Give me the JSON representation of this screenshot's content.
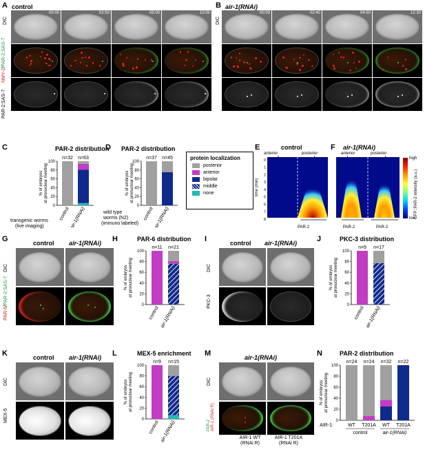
{
  "panels": {
    "A": {
      "letter": "A",
      "title": "control",
      "times": [
        "00:00",
        "02:50",
        "05:00",
        "10:00"
      ]
    },
    "B": {
      "letter": "B",
      "title": "air-1(RNAi)",
      "times": [
        "00:00",
        "02:40",
        "04:50",
        "12:30"
      ]
    },
    "row_labels": {
      "dic": "DIC",
      "nmy2": "NMY-2",
      "par2sas7": "PAR-2;SAS-7",
      "par2sas7_gray": "PAR-2;SAS-7"
    },
    "C": {
      "letter": "C",
      "title": "PAR-2 distribution",
      "note1": "transgenic worms",
      "note2": "(live imaging)"
    },
    "D": {
      "letter": "D",
      "title": "PAR-2 distribution",
      "note1": "wild type",
      "note2": "worms (N2)",
      "note3": "(immuno labeled)"
    },
    "legend": {
      "title": "protein localization",
      "items": [
        "posterior",
        "anterior",
        "bipolar",
        "middle",
        "none"
      ],
      "colors": {
        "posterior": "#a0a0a0",
        "anterior": "#c23cc4",
        "bipolar": "#102a8c",
        "middle": "#1a9c9c",
        "none": "#1fb9b9"
      }
    },
    "E": {
      "letter": "E",
      "title": "control",
      "anterior": "anterior",
      "posterior": "posterior",
      "ylabel": "time (min)",
      "xlabel": "PAR-2",
      "yticks": [
        "0",
        "1",
        "2",
        "3",
        "4",
        "5",
        "6",
        "7",
        "8"
      ]
    },
    "F": {
      "letter": "F",
      "title": "air-1(RNAi)",
      "anterior": "anterior",
      "posterior": "posterior",
      "xlabel1": "PAR-2",
      "xlabel2": "PAR-2"
    },
    "colorbar": {
      "high": "high",
      "low": "low",
      "label": "GFP::PAR-2 intensity (a.u.)"
    },
    "G": {
      "letter": "G",
      "col1": "control",
      "col2": "air-1(RNAi)",
      "row1": "DIC",
      "row2a": "PAR-6",
      "row2b": "PAR-2;SAS-7"
    },
    "H": {
      "letter": "H",
      "title": "PAR-6 distribution"
    },
    "I": {
      "letter": "I",
      "col1": "control",
      "col2": "air-1(RNAi)",
      "row1": "DIC",
      "row2": "PKC-3"
    },
    "J": {
      "letter": "J",
      "title": "PKC-3 distribution"
    },
    "K": {
      "letter": "K",
      "col1": "control",
      "col2": "air-1(RNAi)",
      "row1": "DIC",
      "row2": "MEX-5"
    },
    "L": {
      "letter": "L",
      "title": "MEX-5 enrichment"
    },
    "M": {
      "letter": "M",
      "title": "air-1(RNAi)",
      "row1": "DIC",
      "row2a": "PAR-2",
      "row2b": "AIR-1 (RNAi R)",
      "cap1a": "AIR-1 WT",
      "cap1b": "(RNAi R)",
      "cap2a": "AIR-1 T201A",
      "cap2b": "(RNAi R)"
    },
    "N": {
      "letter": "N",
      "title": "PAR-2 distribution",
      "air1_label": "AIR-1:",
      "group1": "control",
      "group2": "air-1(RNAi)"
    }
  },
  "chart_data": [
    {
      "id": "C",
      "type": "bar",
      "stacked": true,
      "categories": [
        "control",
        "air-1(RNAi)"
      ],
      "ylabel": "% of embryos at pronuclear meeting",
      "ylim": [
        0,
        100
      ],
      "yticks": [
        0,
        20,
        40,
        60,
        80,
        100
      ],
      "annotations": [
        "n=32",
        "n=63"
      ],
      "series": [
        {
          "name": "none",
          "values": [
            0,
            5
          ]
        },
        {
          "name": "middle",
          "values": [
            0,
            0
          ]
        },
        {
          "name": "bipolar",
          "values": [
            0,
            76
          ]
        },
        {
          "name": "anterior",
          "values": [
            0,
            13
          ]
        },
        {
          "name": "posterior",
          "values": [
            100,
            6
          ]
        }
      ]
    },
    {
      "id": "D",
      "type": "bar",
      "stacked": true,
      "categories": [
        "control",
        "air-1(RNAi)"
      ],
      "ylabel": "% of embryos at pronuclear meeting",
      "ylim": [
        0,
        100
      ],
      "yticks": [
        0,
        20,
        40,
        60,
        80,
        100
      ],
      "annotations": [
        "n=37",
        "n=45"
      ],
      "series": [
        {
          "name": "none",
          "values": [
            0,
            0
          ]
        },
        {
          "name": "middle",
          "values": [
            0,
            0
          ]
        },
        {
          "name": "bipolar",
          "values": [
            0,
            75
          ]
        },
        {
          "name": "anterior",
          "values": [
            0,
            0
          ]
        },
        {
          "name": "posterior",
          "values": [
            100,
            25
          ]
        }
      ]
    },
    {
      "id": "H",
      "type": "bar",
      "stacked": true,
      "categories": [
        "control",
        "air-1(RNAi)"
      ],
      "ylabel": "% of embryos at pronuclear meeting",
      "ylim": [
        0,
        100
      ],
      "yticks": [
        0,
        20,
        40,
        60,
        80,
        100
      ],
      "annotations": [
        "n=11",
        "n=21"
      ],
      "series": [
        {
          "name": "middle",
          "values": [
            0,
            76
          ]
        },
        {
          "name": "anterior",
          "values": [
            100,
            5
          ]
        },
        {
          "name": "posterior",
          "values": [
            0,
            19
          ]
        }
      ]
    },
    {
      "id": "J",
      "type": "bar",
      "stacked": true,
      "categories": [
        "control",
        "air-1(RNAi)"
      ],
      "ylabel": "% of embryos at pronuclear meeting",
      "ylim": [
        0,
        100
      ],
      "yticks": [
        0,
        20,
        40,
        60,
        80,
        100
      ],
      "annotations": [
        "n=9",
        "n=17"
      ],
      "series": [
        {
          "name": "middle",
          "values": [
            0,
            77
          ]
        },
        {
          "name": "anterior",
          "values": [
            100,
            0
          ]
        },
        {
          "name": "posterior",
          "values": [
            0,
            23
          ]
        }
      ]
    },
    {
      "id": "L",
      "type": "bar",
      "stacked": true,
      "categories": [
        "control",
        "air-1(RNAi)"
      ],
      "ylabel": "% of embryos at pronuclear meeting",
      "ylim": [
        0,
        100
      ],
      "yticks": [
        0,
        20,
        40,
        60,
        80,
        100
      ],
      "annotations": [
        "n=9",
        "n=15"
      ],
      "series": [
        {
          "name": "none",
          "values": [
            0,
            7
          ]
        },
        {
          "name": "middle",
          "values": [
            0,
            73
          ]
        },
        {
          "name": "anterior",
          "values": [
            100,
            0
          ]
        },
        {
          "name": "posterior",
          "values": [
            0,
            20
          ]
        }
      ]
    },
    {
      "id": "N",
      "type": "bar",
      "stacked": true,
      "categories": [
        "WT",
        "T201A",
        "WT",
        "T201A"
      ],
      "ylabel": "% of embryos at pronuclear meeting",
      "ylim": [
        0,
        100
      ],
      "yticks": [
        0,
        20,
        40,
        60,
        80,
        100
      ],
      "annotations": [
        "n=24",
        "n=24",
        "n=32",
        "n=22"
      ],
      "series": [
        {
          "name": "bipolar",
          "values": [
            0,
            0,
            25,
            100
          ]
        },
        {
          "name": "anterior",
          "values": [
            0,
            8,
            12,
            0
          ]
        },
        {
          "name": "posterior",
          "values": [
            100,
            92,
            63,
            0
          ]
        }
      ]
    }
  ]
}
